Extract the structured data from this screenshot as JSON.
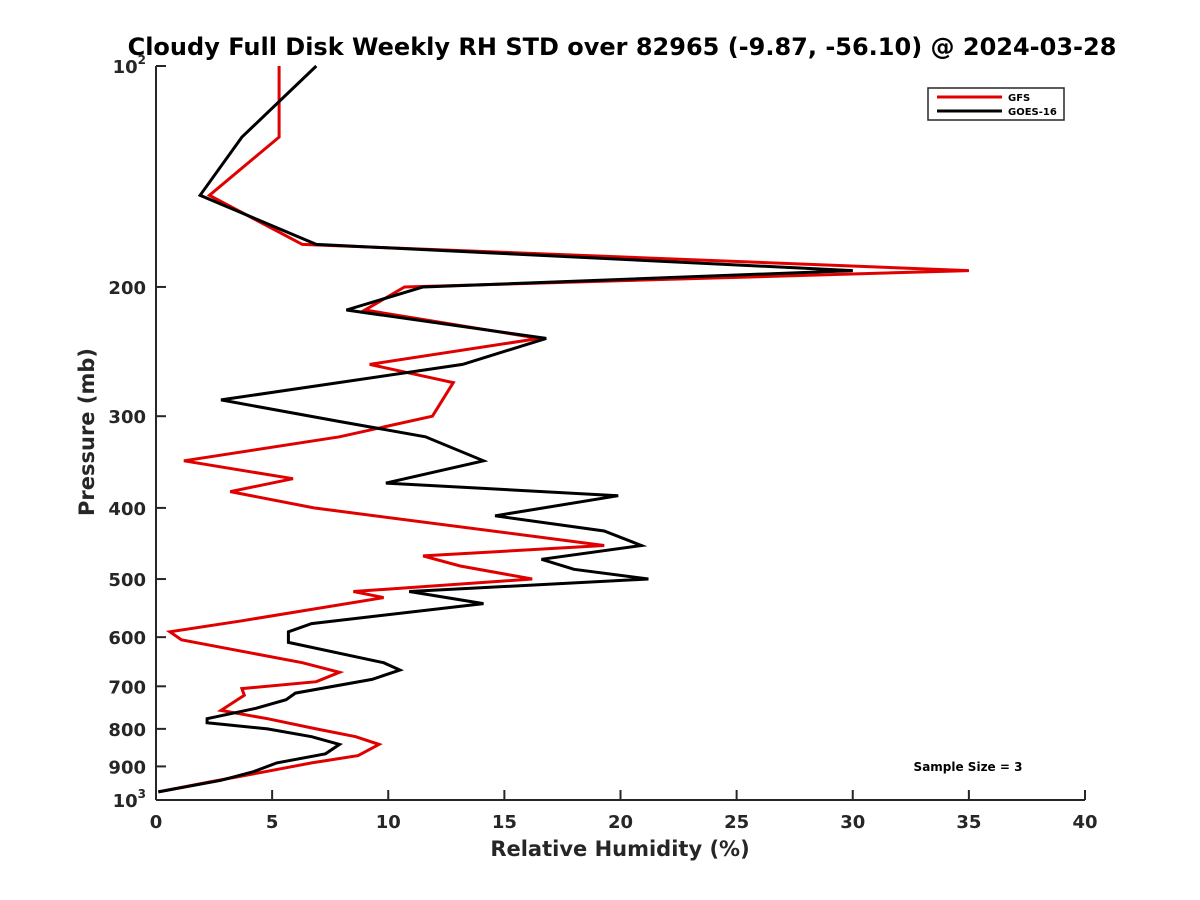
{
  "chart_data": {
    "type": "line",
    "title": "Cloudy Full Disk Weekly RH STD over 82965 (-9.87, -56.10) @ 2024-03-28",
    "xlabel": "Relative Humidity (%)",
    "ylabel": "Pressure (mb)",
    "xlim": [
      0,
      40
    ],
    "ylim": [
      100,
      1000
    ],
    "yscale": "log",
    "y_reversed": true,
    "grid": false,
    "x_ticks": [
      "0",
      "5",
      "10",
      "15",
      "20",
      "25",
      "30",
      "35",
      "40"
    ],
    "y_ticks": [
      {
        "value": 100,
        "label": "10",
        "sup": "2"
      },
      {
        "value": 200,
        "label": "200",
        "sup": ""
      },
      {
        "value": 300,
        "label": "300",
        "sup": ""
      },
      {
        "value": 400,
        "label": "400",
        "sup": ""
      },
      {
        "value": 500,
        "label": "500",
        "sup": ""
      },
      {
        "value": 600,
        "label": "600",
        "sup": ""
      },
      {
        "value": 700,
        "label": "700",
        "sup": ""
      },
      {
        "value": 800,
        "label": "800",
        "sup": ""
      },
      {
        "value": 900,
        "label": "900",
        "sup": ""
      },
      {
        "value": 1000,
        "label": "10",
        "sup": "3"
      }
    ],
    "legend_position": "top-right",
    "annotation": "Sample Size = 3",
    "series": [
      {
        "name": "GFS",
        "color": "#e00000",
        "points": [
          [
            5.3,
            100
          ],
          [
            5.3,
            125
          ],
          [
            2.3,
            150
          ],
          [
            6.3,
            175
          ],
          [
            35.0,
            190
          ],
          [
            10.7,
            200
          ],
          [
            9.0,
            215
          ],
          [
            16.5,
            235
          ],
          [
            9.2,
            255
          ],
          [
            12.8,
            270
          ],
          [
            11.9,
            300
          ],
          [
            7.9,
            320
          ],
          [
            1.2,
            345
          ],
          [
            5.9,
            365
          ],
          [
            3.2,
            380
          ],
          [
            6.8,
            400
          ],
          [
            19.3,
            450
          ],
          [
            11.5,
            465
          ],
          [
            13.1,
            480
          ],
          [
            16.2,
            500
          ],
          [
            8.5,
            520
          ],
          [
            9.8,
            530
          ],
          [
            3.7,
            570
          ],
          [
            0.6,
            590
          ],
          [
            1.1,
            605
          ],
          [
            6.3,
            650
          ],
          [
            7.9,
            670
          ],
          [
            6.9,
            690
          ],
          [
            3.7,
            705
          ],
          [
            3.8,
            720
          ],
          [
            2.8,
            755
          ],
          [
            4.8,
            775
          ],
          [
            6.9,
            800
          ],
          [
            8.6,
            820
          ],
          [
            9.6,
            840
          ],
          [
            8.7,
            870
          ],
          [
            6.7,
            890
          ],
          [
            4.7,
            915
          ],
          [
            2.3,
            945
          ],
          [
            0.1,
            975
          ]
        ]
      },
      {
        "name": "GOES-16",
        "color": "#000000",
        "points": [
          [
            6.9,
            100
          ],
          [
            3.7,
            125
          ],
          [
            1.9,
            150
          ],
          [
            6.9,
            175
          ],
          [
            30.0,
            190
          ],
          [
            11.5,
            200
          ],
          [
            8.2,
            215
          ],
          [
            16.8,
            235
          ],
          [
            13.2,
            255
          ],
          [
            2.8,
            285
          ],
          [
            7.9,
            305
          ],
          [
            11.6,
            320
          ],
          [
            14.1,
            345
          ],
          [
            9.9,
            370
          ],
          [
            19.9,
            385
          ],
          [
            14.6,
            410
          ],
          [
            19.3,
            430
          ],
          [
            20.9,
            450
          ],
          [
            16.6,
            470
          ],
          [
            18.0,
            485
          ],
          [
            21.2,
            500
          ],
          [
            10.9,
            520
          ],
          [
            14.1,
            540
          ],
          [
            6.7,
            575
          ],
          [
            5.7,
            590
          ],
          [
            5.7,
            610
          ],
          [
            9.8,
            650
          ],
          [
            10.5,
            665
          ],
          [
            9.3,
            685
          ],
          [
            6.0,
            715
          ],
          [
            5.6,
            730
          ],
          [
            4.3,
            750
          ],
          [
            2.2,
            775
          ],
          [
            2.2,
            785
          ],
          [
            4.8,
            800
          ],
          [
            6.7,
            820
          ],
          [
            7.9,
            840
          ],
          [
            7.3,
            865
          ],
          [
            5.2,
            890
          ],
          [
            4.2,
            915
          ],
          [
            2.8,
            940
          ],
          [
            0.1,
            975
          ]
        ]
      }
    ]
  }
}
